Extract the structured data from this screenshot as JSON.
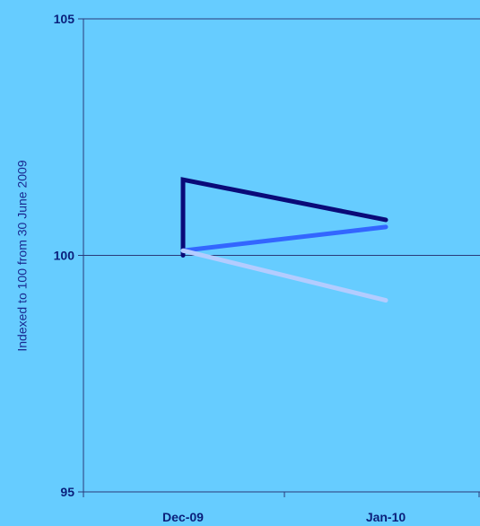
{
  "chart_data": {
    "type": "line",
    "title": "",
    "xlabel": "",
    "ylabel": "Indexed to 100 from 30 June 2009",
    "ylim": [
      95,
      105
    ],
    "yticks": [
      95,
      100,
      105
    ],
    "categories": [
      "Dec-09",
      "Jan-10"
    ],
    "grid": true,
    "legend": "none",
    "series": [
      {
        "color": "#0a0a78",
        "points": [
          [
            0,
            100
          ],
          [
            0,
            101.6
          ],
          [
            1,
            100.75
          ]
        ]
      },
      {
        "color": "#3366ff",
        "points": [
          [
            0,
            100.1
          ],
          [
            1,
            100.6
          ]
        ]
      },
      {
        "color": "#b3ccff",
        "points": [
          [
            0,
            100.1
          ],
          [
            1,
            99.05
          ]
        ]
      }
    ]
  }
}
